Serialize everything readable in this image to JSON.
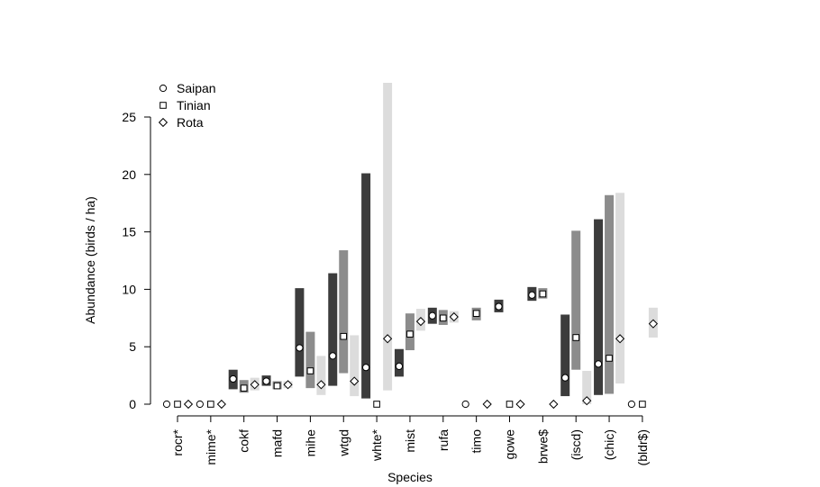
{
  "chart_data": {
    "type": "range-bar-with-points",
    "xlabel": "Species",
    "ylabel": "Abundance (birds / ha)",
    "ylim": [
      0,
      28
    ],
    "yticks": [
      0,
      5,
      10,
      15,
      20,
      25
    ],
    "legend_position": "top-left",
    "categories": [
      "rocr*",
      "mime*",
      "cokf",
      "mafd",
      "mihe",
      "wtgd",
      "whte*",
      "mist",
      "rufa",
      "timo",
      "gowe",
      "brwe$",
      "(iscd)",
      "(chic)",
      "(bldr$)"
    ],
    "series": [
      {
        "name": "Saipan",
        "marker": "circle",
        "bar_color": "#3c3c3c",
        "points": [
          {
            "value": 0,
            "low": null,
            "high": null
          },
          {
            "value": 0,
            "low": null,
            "high": null
          },
          {
            "value": 2.2,
            "low": 1.3,
            "high": 3.0
          },
          {
            "value": 2.0,
            "low": 1.6,
            "high": 2.5
          },
          {
            "value": 4.9,
            "low": 2.4,
            "high": 10.1
          },
          {
            "value": 4.2,
            "low": 1.6,
            "high": 11.4
          },
          {
            "value": 3.2,
            "low": 0.5,
            "high": 20.1
          },
          {
            "value": 3.3,
            "low": 2.4,
            "high": 4.8
          },
          {
            "value": 7.7,
            "low": 7.0,
            "high": 8.4
          },
          {
            "value": 0,
            "low": null,
            "high": null
          },
          {
            "value": 8.5,
            "low": 8.0,
            "high": 9.1
          },
          {
            "value": 9.5,
            "low": 9.0,
            "high": 10.2
          },
          {
            "value": 2.3,
            "low": 0.7,
            "high": 7.8
          },
          {
            "value": 3.5,
            "low": 0.8,
            "high": 16.1
          },
          {
            "value": 0,
            "low": null,
            "high": null
          }
        ]
      },
      {
        "name": "Tinian",
        "marker": "square",
        "bar_color": "#8c8c8c",
        "points": [
          {
            "value": 0,
            "low": null,
            "high": null
          },
          {
            "value": 0,
            "low": null,
            "high": null
          },
          {
            "value": 1.4,
            "low": 1.0,
            "high": 2.1
          },
          {
            "value": 1.6,
            "low": 1.3,
            "high": 2.0
          },
          {
            "value": 2.9,
            "low": 1.4,
            "high": 6.3
          },
          {
            "value": 5.9,
            "low": 2.7,
            "high": 13.4
          },
          {
            "value": 0,
            "low": null,
            "high": null
          },
          {
            "value": 6.1,
            "low": 4.7,
            "high": 7.9
          },
          {
            "value": 7.5,
            "low": 6.9,
            "high": 8.2
          },
          {
            "value": 7.9,
            "low": 7.3,
            "high": 8.4
          },
          {
            "value": 0,
            "low": null,
            "high": null
          },
          {
            "value": 9.6,
            "low": 9.2,
            "high": 10.1
          },
          {
            "value": 5.8,
            "low": 3.0,
            "high": 15.1
          },
          {
            "value": 4.0,
            "low": 0.9,
            "high": 18.2
          },
          {
            "value": 0,
            "low": null,
            "high": null
          }
        ]
      },
      {
        "name": "Rota",
        "marker": "diamond",
        "bar_color": "#dcdcdc",
        "points": [
          {
            "value": 0,
            "low": null,
            "high": null
          },
          {
            "value": 0,
            "low": null,
            "high": null
          },
          {
            "value": 1.7,
            "low": 1.2,
            "high": 2.3
          },
          {
            "value": 1.7,
            "low": 1.4,
            "high": 2.0
          },
          {
            "value": 1.7,
            "low": 0.8,
            "high": 4.2
          },
          {
            "value": 2.0,
            "low": 0.7,
            "high": 6.0
          },
          {
            "value": 5.7,
            "low": 1.2,
            "high": 28.0
          },
          {
            "value": 7.2,
            "low": 6.4,
            "high": 8.3
          },
          {
            "value": 7.6,
            "low": 7.1,
            "high": 8.1
          },
          {
            "value": 0,
            "low": null,
            "high": null
          },
          {
            "value": 0,
            "low": null,
            "high": null
          },
          {
            "value": 0,
            "low": null,
            "high": null
          },
          {
            "value": 0.3,
            "low": 0.0,
            "high": 2.9
          },
          {
            "value": 5.7,
            "low": 1.8,
            "high": 18.4
          },
          {
            "value": 7.0,
            "low": 5.8,
            "high": 8.4
          }
        ]
      }
    ]
  }
}
